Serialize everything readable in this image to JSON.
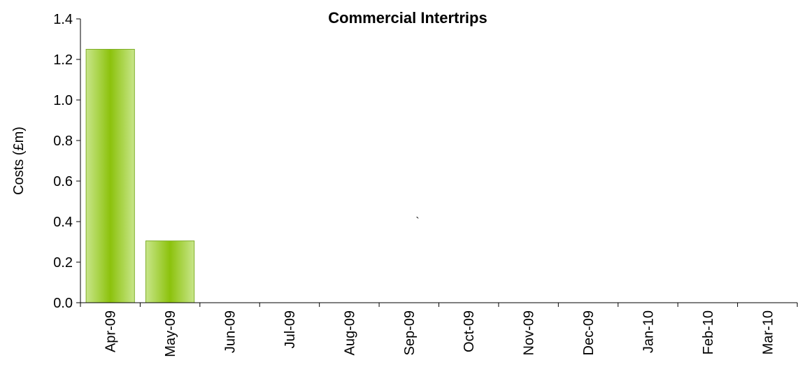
{
  "chart_data": {
    "type": "bar",
    "title": "Commercial Intertrips",
    "xlabel": "",
    "ylabel": "Costs (£m)",
    "categories": [
      "Apr-09",
      "May-09",
      "Jun-09",
      "Jul-09",
      "Aug-09",
      "Sep-09",
      "Oct-09",
      "Nov-09",
      "Dec-09",
      "Jan-10",
      "Feb-10",
      "Mar-10"
    ],
    "values": [
      1.25,
      0.305,
      0,
      0,
      0,
      0,
      0,
      0,
      0,
      0,
      0,
      0
    ],
    "ylim": [
      0,
      1.4
    ],
    "yticks": [
      "0.0",
      "0.2",
      "0.4",
      "0.6",
      "0.8",
      "1.0",
      "1.2",
      "1.4"
    ],
    "grid": false,
    "legend": "none",
    "annotation": "`",
    "colors": {
      "bar_edge": "#7fae2a",
      "bar_light": "#c8e68a",
      "bar_dark": "#8cc20c",
      "axis": "#000000"
    }
  }
}
